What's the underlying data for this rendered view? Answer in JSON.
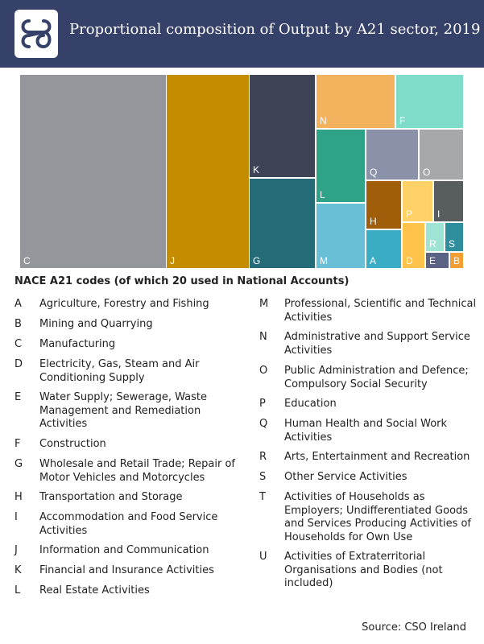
{
  "header": {
    "title": "Proportional composition of Output by A21 sector, 2019",
    "logo_icon": "cso-logo-icon"
  },
  "chart_data": {
    "type": "treemap",
    "title": "Proportional composition of Output by A21 sector, 2019",
    "values_unit": "share of total output (%)",
    "nodes": [
      {
        "code": "C",
        "value": 36.6,
        "color": "#93979c"
      },
      {
        "code": "J",
        "value": 20.5,
        "color": "#c68c00"
      },
      {
        "code": "K",
        "value": 8.6,
        "color": "#3e4356"
      },
      {
        "code": "G",
        "value": 7.3,
        "color": "#256c78"
      },
      {
        "code": "N",
        "value": 3.3,
        "color": "#f2b25e"
      },
      {
        "code": "F",
        "value": 3.3,
        "color": "#7fdcc8"
      },
      {
        "code": "L",
        "value": 3.3,
        "color": "#2ea388"
      },
      {
        "code": "M",
        "value": 3.5,
        "color": "#69bfd6"
      },
      {
        "code": "Q",
        "value": 2.1,
        "color": "#8a91a8"
      },
      {
        "code": "O",
        "value": 2.0,
        "color": "#a6a9aa"
      },
      {
        "code": "H",
        "value": 1.3,
        "color": "#a05d0a"
      },
      {
        "code": "A",
        "value": 1.2,
        "color": "#3aadc4"
      },
      {
        "code": "P",
        "value": 0.9,
        "color": "#ffd166"
      },
      {
        "code": "I",
        "value": 0.9,
        "color": "#585d60"
      },
      {
        "code": "D",
        "value": 0.7,
        "color": "#ffc24a"
      },
      {
        "code": "R",
        "value": 0.4,
        "color": "#9fe3d4"
      },
      {
        "code": "S",
        "value": 0.4,
        "color": "#2e8e9e"
      },
      {
        "code": "E",
        "value": 0.3,
        "color": "#5a6384"
      },
      {
        "code": "B",
        "value": 0.1,
        "color": "#f29e32"
      }
    ]
  },
  "legend": {
    "heading": "NACE A21 codes (of which 20 used in National Accounts)",
    "left": [
      {
        "code": "A",
        "label": "Agriculture, Forestry and Fishing"
      },
      {
        "code": "B",
        "label": "Mining and Quarrying"
      },
      {
        "code": "C",
        "label": "Manufacturing"
      },
      {
        "code": "D",
        "label": "Electricity, Gas, Steam and Air Conditioning Supply"
      },
      {
        "code": "E",
        "label": "Water Supply; Sewerage, Waste Management and Remediation Activities"
      },
      {
        "code": "F",
        "label": "Construction"
      },
      {
        "code": "G",
        "label": "Wholesale and Retail Trade; Repair of Motor Vehicles and Motorcycles"
      },
      {
        "code": "H",
        "label": "Transportation and Storage"
      },
      {
        "code": "I",
        "label": "Accommodation and Food Service Activities"
      },
      {
        "code": "J",
        "label": "Information and Communication"
      },
      {
        "code": "K",
        "label": "Financial and Insurance Activities"
      },
      {
        "code": "L",
        "label": "Real Estate Activities"
      }
    ],
    "right": [
      {
        "code": "M",
        "label": "Professional, Scientific and Technical Activities"
      },
      {
        "code": "N",
        "label": "Administrative and Support Service Activities"
      },
      {
        "code": "O",
        "label": "Public Administration and Defence; Compulsory Social Security"
      },
      {
        "code": "P",
        "label": "Education"
      },
      {
        "code": "Q",
        "label": "Human Health and Social Work Activities"
      },
      {
        "code": "R",
        "label": "Arts, Entertainment and Recreation"
      },
      {
        "code": "S",
        "label": "Other Service Activities"
      },
      {
        "code": "T",
        "label": "Activities of Households as Employers; Undifferentiated Goods and Services Producing Activities of Households for Own Use"
      },
      {
        "code": "U",
        "label": "Activities of Extraterritorial Organisations and Bodies (not included)"
      }
    ]
  },
  "source": "Source:  CSO Ireland"
}
